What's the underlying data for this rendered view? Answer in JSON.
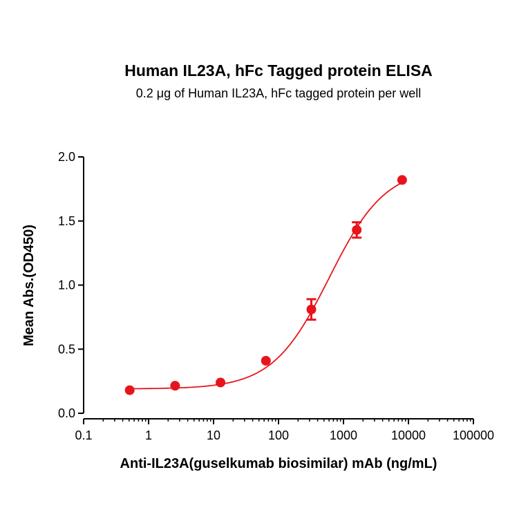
{
  "chart_data": {
    "type": "scatter",
    "title": "Human IL23A, hFc Tagged protein ELISA",
    "subtitle": "0.2 μg of Human IL23A, hFc tagged protein per well",
    "xlabel": "Anti-IL23A(guselkumab biosimilar) mAb (ng/mL)",
    "ylabel": "Mean Abs.(OD450)",
    "xscale": "log",
    "xlim": [
      0.1,
      100000
    ],
    "ylim": [
      0,
      2.0
    ],
    "xticks": [
      "0.1",
      "1",
      "10",
      "100",
      "1000",
      "10000",
      "100000"
    ],
    "yticks": [
      "0.0",
      "0.5",
      "1.0",
      "1.5",
      "2.0"
    ],
    "grid": false,
    "series": [
      {
        "name": "Anti-IL23A",
        "color": "#e8141b",
        "x": [
          0.512,
          2.56,
          12.8,
          64,
          320,
          1600,
          8000
        ],
        "y": [
          0.18,
          0.215,
          0.24,
          0.41,
          0.81,
          1.43,
          1.82
        ],
        "error": [
          0,
          0,
          0,
          0,
          0.08,
          0.06,
          0
        ],
        "fit": {
          "model": "4PL",
          "bottom": 0.19,
          "top": 1.92,
          "ec50": 600,
          "hill": 1.0
        }
      }
    ]
  }
}
